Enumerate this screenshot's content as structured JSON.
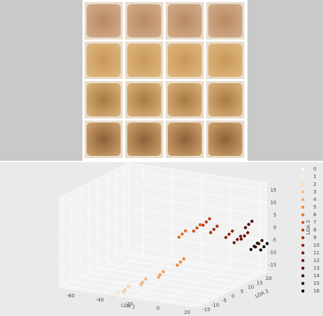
{
  "chart_data": {
    "type": "scatter3d",
    "xlabel": "LDA 1",
    "ylabel": "LDA 2",
    "zlabel": "LDA 3",
    "xlim": [
      -70,
      25
    ],
    "ylim": [
      -17,
      22
    ],
    "zlim": [
      -18,
      18
    ],
    "xticks": [
      -60,
      -40,
      -20,
      0,
      20
    ],
    "yticks": [
      -15,
      -10,
      -5,
      0,
      5,
      10,
      15,
      20
    ],
    "zticks": [
      -15,
      -10,
      -5,
      0,
      5,
      10,
      15
    ],
    "grid": true,
    "legend": "right",
    "series": [
      {
        "name": "0",
        "color": "#ffffff",
        "x": [
          -40,
          -41,
          -39
        ],
        "y": [
          5,
          6,
          4
        ],
        "z": [
          18,
          19,
          17.5
        ]
      },
      {
        "name": "1",
        "color": "#fff0dc",
        "x": [
          -34,
          -33,
          -35
        ],
        "y": [
          -15,
          -14,
          -16
        ],
        "z": [
          -19,
          -18,
          -20
        ]
      },
      {
        "name": "2",
        "color": "#fdd9b0",
        "x": [
          -27,
          -26,
          -28
        ],
        "y": [
          -15,
          -14,
          -15
        ],
        "z": [
          -16,
          -15,
          -17
        ]
      },
      {
        "name": "3",
        "color": "#fdbb80",
        "x": [
          -15,
          -14,
          -16
        ],
        "y": [
          -15,
          -14,
          -15
        ],
        "z": [
          -12,
          -11,
          -13
        ]
      },
      {
        "name": "4",
        "color": "#fda55e",
        "x": [
          -3,
          -2,
          -4
        ],
        "y": [
          -15,
          -14,
          -15
        ],
        "z": [
          -8,
          -7,
          -9
        ]
      },
      {
        "name": "5",
        "color": "#f98a3a",
        "x": [
          5,
          6,
          4
        ],
        "y": [
          -10,
          -9,
          -11
        ],
        "z": [
          -4,
          -3,
          -5
        ]
      },
      {
        "name": "6",
        "color": "#f06d1e",
        "x": [
          0,
          1,
          -1
        ],
        "y": [
          -5,
          -4,
          -6
        ],
        "z": [
          5,
          6,
          4
        ]
      },
      {
        "name": "7",
        "color": "#e0501a",
        "x": [
          4,
          5,
          3
        ],
        "y": [
          0,
          1,
          -1
        ],
        "z": [
          6,
          7,
          5
        ]
      },
      {
        "name": "8",
        "color": "#c83b17",
        "x": [
          8,
          9,
          7
        ],
        "y": [
          2,
          3,
          1
        ],
        "z": [
          8,
          9,
          7
        ]
      },
      {
        "name": "9",
        "color": "#b02a10",
        "x": [
          12,
          13,
          11
        ],
        "y": [
          3,
          4,
          2
        ],
        "z": [
          5,
          6,
          4
        ]
      },
      {
        "name": "10",
        "color": "#991d0b",
        "x": [
          20,
          21,
          19
        ],
        "y": [
          5,
          6,
          4
        ],
        "z": [
          3,
          4,
          2
        ]
      },
      {
        "name": "11",
        "color": "#7f1306",
        "x": [
          22,
          23,
          21
        ],
        "y": [
          8,
          9,
          7
        ],
        "z": [
          0,
          1,
          -1
        ]
      },
      {
        "name": "12",
        "color": "#6a0c04",
        "x": [
          22,
          23,
          21
        ],
        "y": [
          12,
          13,
          11
        ],
        "z": [
          0,
          1,
          -1
        ]
      },
      {
        "name": "13",
        "color": "#540802",
        "x": [
          20,
          21,
          19
        ],
        "y": [
          16,
          17,
          15
        ],
        "z": [
          3,
          4,
          2
        ]
      },
      {
        "name": "14",
        "color": "#3d0401",
        "x": [
          22,
          23,
          21
        ],
        "y": [
          20,
          21,
          19
        ],
        "z": [
          -6,
          -5,
          -7
        ]
      },
      {
        "name": "15",
        "color": "#240100",
        "x": [
          25,
          26,
          24
        ],
        "y": [
          15,
          16,
          14
        ],
        "z": [
          -5,
          -4,
          -6
        ]
      },
      {
        "name": "16",
        "color": "#000000",
        "x": [
          28,
          29,
          27
        ],
        "y": [
          18,
          19,
          17
        ],
        "z": [
          -6,
          -5,
          -7
        ]
      }
    ]
  }
}
